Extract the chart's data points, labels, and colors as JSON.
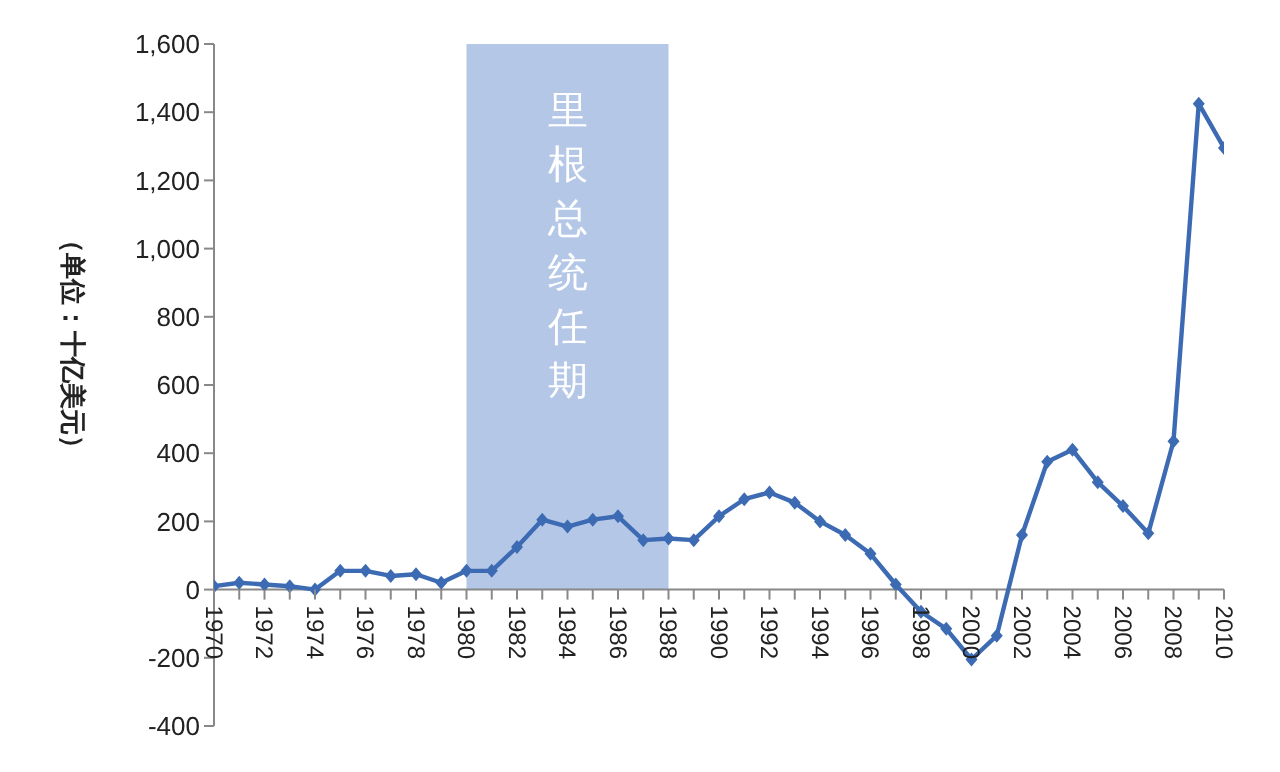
{
  "chart_data": {
    "type": "line",
    "ylabel": "（单位：十亿美元）",
    "x": [
      1970,
      1971,
      1972,
      1973,
      1974,
      1975,
      1976,
      1977,
      1978,
      1979,
      1980,
      1981,
      1982,
      1983,
      1984,
      1985,
      1986,
      1987,
      1988,
      1989,
      1990,
      1991,
      1992,
      1993,
      1994,
      1995,
      1996,
      1997,
      1998,
      1999,
      2000,
      2001,
      2002,
      2003,
      2004,
      2005,
      2006,
      2007,
      2008,
      2009,
      2010
    ],
    "series": [
      {
        "color": "#3d6bb3",
        "values": [
          10,
          20,
          15,
          10,
          0,
          55,
          55,
          40,
          45,
          20,
          55,
          55,
          125,
          205,
          185,
          205,
          215,
          145,
          150,
          145,
          215,
          265,
          285,
          255,
          200,
          160,
          105,
          15,
          -65,
          -115,
          -205,
          -135,
          160,
          375,
          410,
          315,
          245,
          165,
          435,
          1425,
          1295
        ]
      }
    ],
    "xlim": [
      1970,
      2010
    ],
    "xticks": [
      1970,
      {
        "value": 1971,
        "label": null
      },
      1972,
      {
        "value": 1973,
        "label": null
      },
      1974,
      {
        "value": 1975,
        "label": null
      },
      1976,
      {
        "value": 1977,
        "label": null
      },
      1978,
      {
        "value": 1979,
        "label": null
      },
      1980,
      {
        "value": 1981,
        "label": null
      },
      1982,
      {
        "value": 1983,
        "label": null
      },
      1984,
      {
        "value": 1985,
        "label": null
      },
      1986,
      {
        "value": 1987,
        "label": null
      },
      1988,
      {
        "value": 1989,
        "label": null
      },
      1990,
      {
        "value": 1991,
        "label": null
      },
      1992,
      {
        "value": 1993,
        "label": null
      },
      1994,
      {
        "value": 1995,
        "label": null
      },
      1996,
      {
        "value": 1997,
        "label": null
      },
      1998,
      {
        "value": 1999,
        "label": null
      },
      2000,
      {
        "value": 2001,
        "label": null
      },
      2002,
      {
        "value": 2003,
        "label": null
      },
      2004,
      {
        "value": 2005,
        "label": null
      },
      2006,
      {
        "value": 2007,
        "label": null
      },
      2008,
      {
        "value": 2009,
        "label": null
      },
      2010
    ],
    "ylim": [
      -400,
      1600
    ],
    "yticks": [
      -400,
      -200,
      0,
      200,
      400,
      600,
      800,
      {
        "value": 1000,
        "label": "1,000"
      },
      {
        "value": 1200,
        "label": "1,200"
      },
      {
        "value": 1400,
        "label": "1,400"
      },
      {
        "value": 1600,
        "label": "1,600"
      }
    ],
    "bands": [
      {
        "axis": "x",
        "from": 1980,
        "to": 1988,
        "label": "里根总统任期",
        "color": "#b4c7e7"
      }
    ],
    "marker": "diamond",
    "line_style": "solid"
  }
}
